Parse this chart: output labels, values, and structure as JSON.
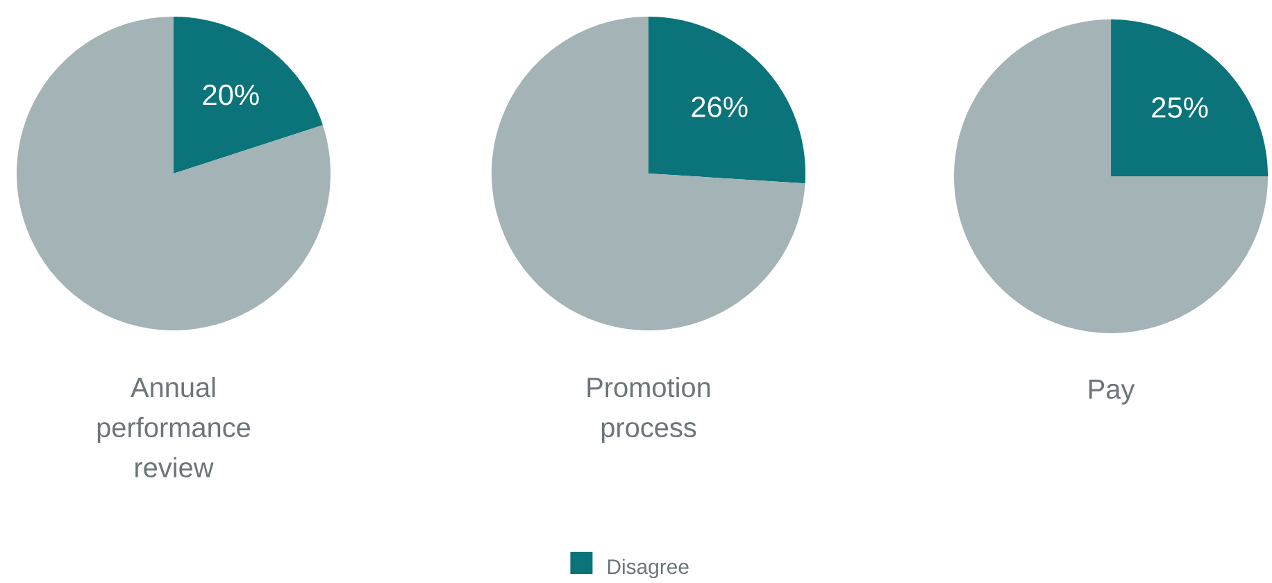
{
  "chart_data": [
    {
      "type": "pie",
      "title": "Annual performance review",
      "categories": [
        null,
        null
      ],
      "values": [
        20,
        80
      ],
      "colors": [
        "#0b737a",
        "#a3b3b6"
      ],
      "value_labels": [
        "20%",
        null
      ]
    },
    {
      "type": "pie",
      "title": "Promotion process",
      "categories": [
        "Disagree",
        null
      ],
      "values": [
        26,
        74
      ],
      "colors": [
        "#0b737a",
        "#a3b3b6"
      ],
      "value_labels": [
        "26%",
        null
      ],
      "legend": "bottom"
    },
    {
      "type": "pie",
      "title": "Pay",
      "categories": [
        null,
        null
      ],
      "values": [
        25,
        75
      ],
      "colors": [
        "#0b737a",
        "#a3b3b6"
      ],
      "value_labels": [
        "25%",
        null
      ]
    }
  ]
}
